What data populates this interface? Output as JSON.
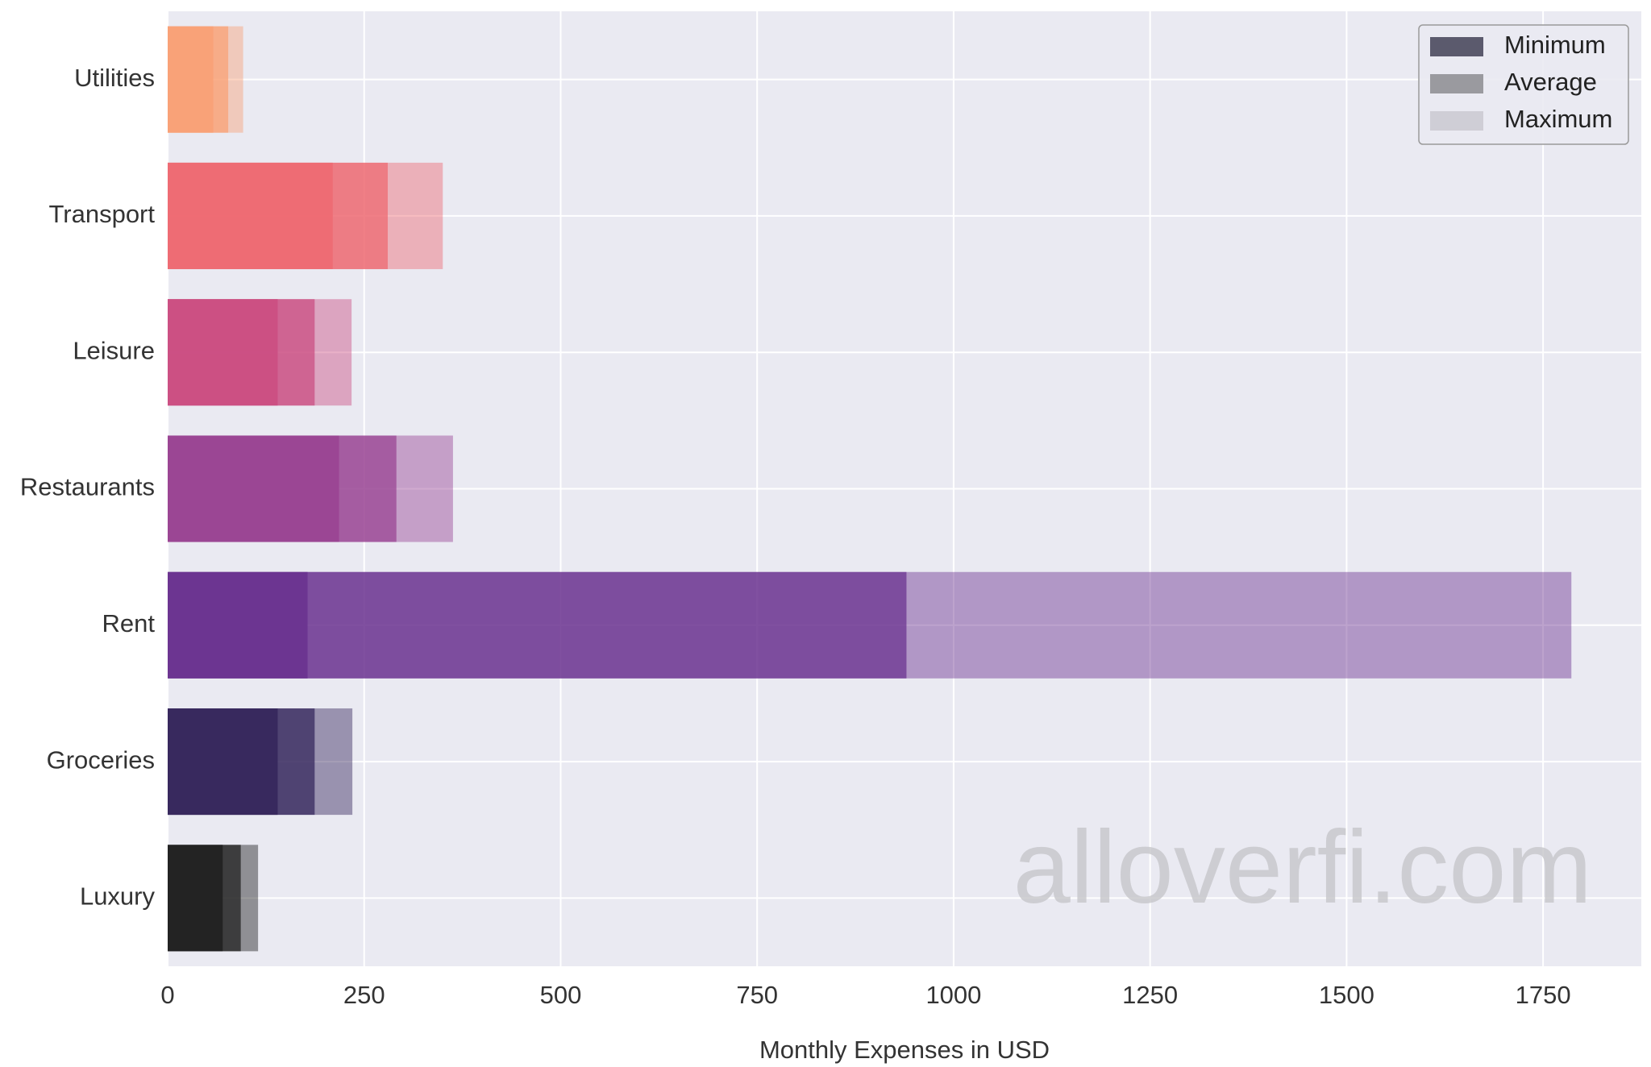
{
  "chart_data": {
    "type": "bar",
    "orientation": "horizontal",
    "categories": [
      "Utilities",
      "Transport",
      "Leisure",
      "Restaurants",
      "Rent",
      "Groceries",
      "Luxury"
    ],
    "series": [
      {
        "name": "Minimum",
        "values": [
          58,
          210,
          140,
          218,
          178,
          140,
          70
        ]
      },
      {
        "name": "Average",
        "values": [
          77,
          280,
          187,
          291,
          940,
          187,
          93
        ]
      },
      {
        "name": "Maximum",
        "values": [
          96,
          350,
          234,
          363,
          1786,
          235,
          115
        ]
      }
    ],
    "category_colors": {
      "Utilities": "#f9a177",
      "Transport": "#ee6b73",
      "Leisure": "#cb4f83",
      "Restaurants": "#9a4594",
      "Rent": "#6c3490",
      "Groceries": "#37285d",
      "Luxury": "#222222"
    },
    "legend_swatch_colors": [
      "#5b5a6d",
      "#9a9a9f",
      "#cfced6"
    ],
    "xlabel": "Monthly Expenses in USD",
    "ylabel": "",
    "title": "",
    "xlim": [
      0,
      1875
    ],
    "xticks": [
      0,
      250,
      500,
      750,
      1000,
      1250,
      1500,
      1750
    ],
    "xtick_labels": [
      "0",
      "250",
      "500",
      "750",
      "1000",
      "1250",
      "1500",
      "1750"
    ],
    "grid": true,
    "legend_position": "top-right",
    "background_color": "#eaeaf2",
    "watermark": "alloverfi.com"
  }
}
